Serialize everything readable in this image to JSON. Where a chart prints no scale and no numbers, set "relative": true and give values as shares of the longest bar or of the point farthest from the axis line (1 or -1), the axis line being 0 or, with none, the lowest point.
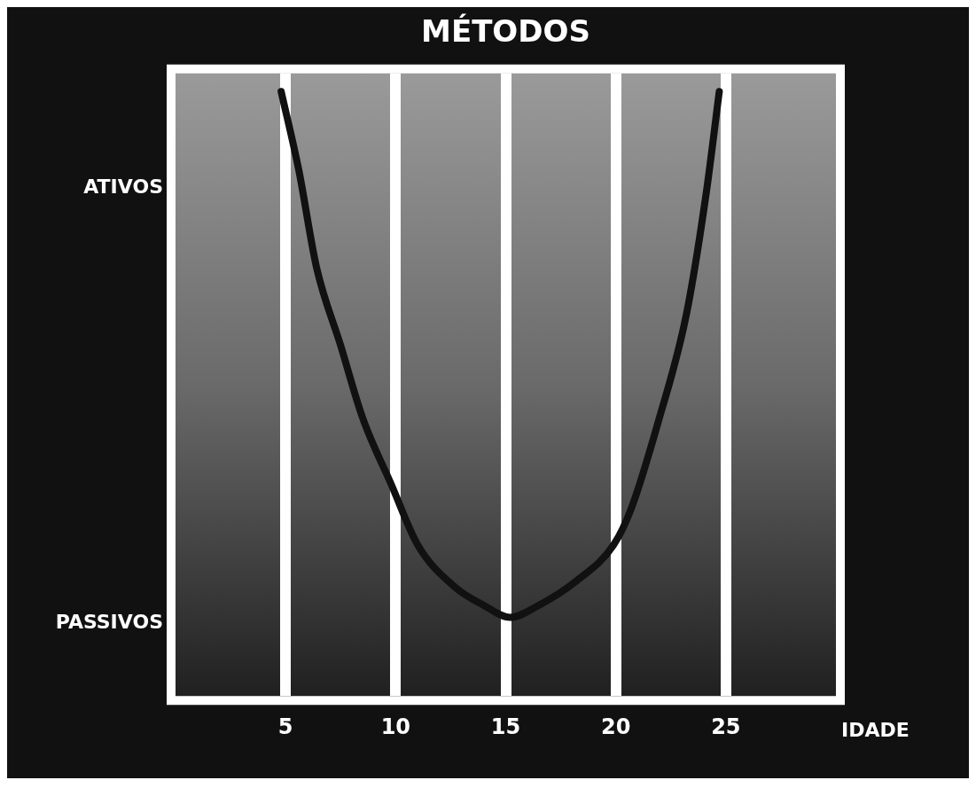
{
  "chart_data": {
    "type": "line",
    "title": "MÉTODOS",
    "xlabel": "IDADE",
    "relative": true,
    "annotations": [
      "ATIVOS",
      "PASSIVOS"
    ],
    "xlim": [
      0,
      30
    ],
    "xticks": [
      5,
      10,
      15,
      20,
      25
    ],
    "grid": "x",
    "legend": false,
    "marker": "none",
    "line_style": "solid",
    "series": [
      {
        "color": "#111111",
        "x": [
          4.8,
          5.6,
          6.4,
          7.5,
          8.5,
          9.8,
          11.0,
          12.7,
          14.0,
          15.2,
          16.5,
          18.2,
          19.9,
          20.7,
          21.9,
          23.2,
          24.1,
          24.7
        ],
        "values": [
          1.0,
          0.87,
          0.71,
          0.58,
          0.46,
          0.35,
          0.25,
          0.18,
          0.15,
          0.13,
          0.15,
          0.19,
          0.25,
          0.31,
          0.45,
          0.63,
          0.83,
          1.0
        ]
      }
    ]
  }
}
